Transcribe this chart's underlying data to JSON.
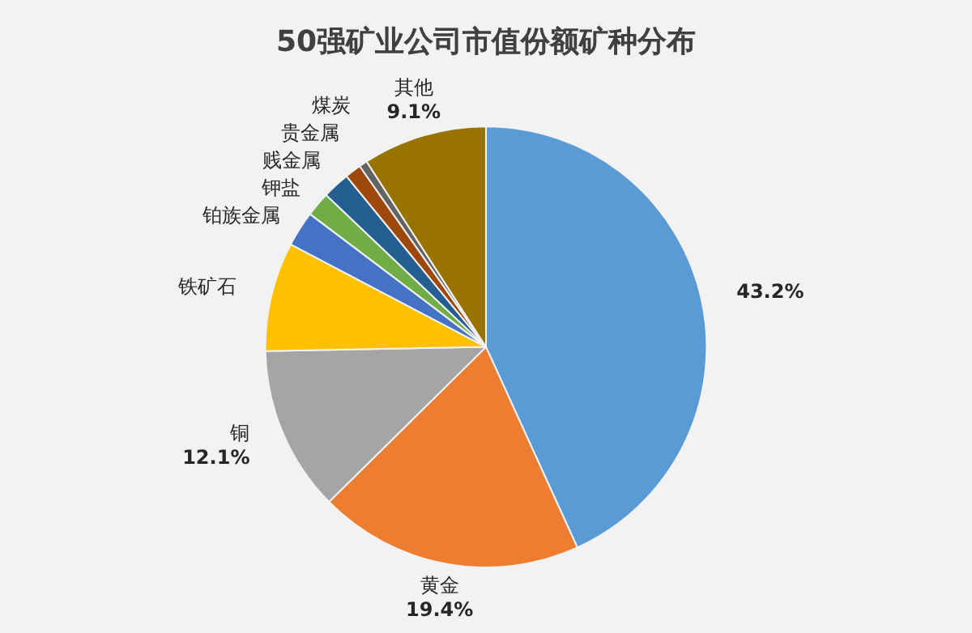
{
  "chart_data": {
    "type": "pie",
    "title": "50强矿业公司市值份额矿种分布",
    "categories": [
      null,
      "黄金",
      "铜",
      "铁矿石",
      "铂族金属",
      "钾盐",
      "贱金属",
      "贵金属",
      "煤炭",
      "其他"
    ],
    "values": [
      43.2,
      19.4,
      12.1,
      8.0,
      2.6,
      1.8,
      2.0,
      1.2,
      0.6,
      9.1
    ],
    "colors": [
      "#5b9bd5",
      "#ed7d31",
      "#a5a5a5",
      "#ffc000",
      "#4472c4",
      "#70ad47",
      "#255e91",
      "#9e480e",
      "#636363",
      "#997300"
    ],
    "value_labels": [
      "43.2%",
      "19.4%",
      "12.1%",
      null,
      null,
      null,
      null,
      null,
      null,
      "9.1%"
    ],
    "legend": false
  }
}
